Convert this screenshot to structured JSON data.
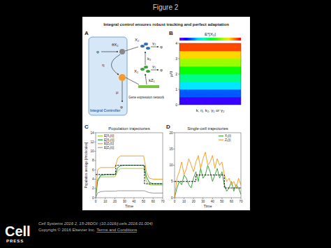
{
  "slide": {
    "title": "Figure 2",
    "journal": "Cell Systems 2016 2, 15-26DOI: (10.1016/j.cels.2016.01.004)",
    "copyright": "Copyright © 2016 Elsevier Inc.",
    "terms": "Terms and Conditions",
    "logo_top": "Cell",
    "logo_bottom": "PRESS"
  },
  "figure": {
    "title": "Integral control ensures robust tracking and perfect adaptation"
  },
  "diagram": {
    "panel": "A",
    "controller": "Integral Controller",
    "network": "Gene expression network",
    "theta_x2": "θX₂",
    "phi_in": "φ",
    "eta": "η",
    "mu": "μ",
    "phi_out": "φ",
    "x2": "X₂",
    "gamma2": "γ₂",
    "phi_x2": "φ",
    "x1": "X₁",
    "gamma1": "γ₁",
    "phi_x1": "φ",
    "k2": "k₂",
    "kz1": "kZ₁"
  },
  "chart_data": [
    {
      "type": "heatmap",
      "panel": "B",
      "x_label": "k, η, k₂, γ₁ or γ₂",
      "y_label": "μ/θ",
      "ylim": [
        0,
        4
      ],
      "yticks": [
        0,
        1,
        2,
        3,
        4
      ],
      "tick_labels": "y",
      "cells": [
        [
          0.25,
          0.25,
          0.25,
          0.25
        ],
        [
          0.75,
          0.75,
          0.75,
          0.75
        ],
        [
          1.25,
          1.25,
          1.25,
          1.25
        ],
        [
          1.75,
          1.75,
          1.75,
          1.75
        ],
        [
          2.25,
          2.25,
          2.25,
          2.25
        ],
        [
          2.75,
          2.75,
          2.75,
          2.75
        ],
        [
          3.25,
          3.25,
          3.25,
          3.25
        ],
        [
          3.75,
          3.75,
          3.75,
          3.75
        ]
      ],
      "colorbar_label": "E*[X₂]",
      "colorbar_range": [
        0,
        4
      ]
    },
    {
      "type": "line",
      "panel": "C",
      "title": "Population trajectories",
      "x_label": "Time",
      "y_label": "Population average [#molecules]",
      "x": [
        0,
        2,
        5,
        10,
        20,
        21,
        23,
        26,
        30,
        40,
        50,
        51,
        53,
        56,
        60,
        70
      ],
      "xlim": [
        0,
        70
      ],
      "xticks": [
        0,
        10,
        20,
        30,
        40,
        50,
        60,
        70
      ],
      "ylim": [
        0,
        14
      ],
      "yticks": [
        0,
        2,
        4,
        6,
        8,
        10,
        12,
        14
      ],
      "grid": false,
      "legend": "upper left",
      "series": [
        {
          "name": "E[X₁(t)]",
          "color": "#9acd32",
          "values": [
            0,
            4,
            4.5,
            4.5,
            4.5,
            4.8,
            5.8,
            6.3,
            6.3,
            6.3,
            6.3,
            5.8,
            3.5,
            2.8,
            2.7,
            2.7
          ]
        },
        {
          "name": "E[X₂(t)]",
          "color": "#1a9850",
          "values": [
            0,
            3.5,
            4.8,
            5,
            5,
            5.3,
            6.5,
            6.9,
            7,
            7,
            7,
            6.5,
            4.5,
            3.3,
            3,
            3
          ]
        },
        {
          "name": "E[Z₁(t)]",
          "color": "#f4a12c",
          "values": [
            0,
            6,
            6.5,
            6.5,
            6.5,
            7,
            8.5,
            9,
            9,
            9,
            9,
            8,
            5.5,
            4.2,
            4,
            4
          ]
        },
        {
          "name": "E[Z₂(t)]",
          "color": "#999999",
          "values": [
            0,
            1,
            1.3,
            1.4,
            1.4,
            1.4,
            1.5,
            1.5,
            1.5,
            1.5,
            1.5,
            1.5,
            1.3,
            1.1,
            1,
            1
          ]
        },
        {
          "color": "#000000",
          "type": "step",
          "line_style": "dashed",
          "values": [
            5,
            5,
            5,
            5,
            5,
            7,
            7,
            7,
            7,
            7,
            7,
            3,
            3,
            3,
            3,
            3
          ]
        }
      ]
    },
    {
      "type": "line",
      "panel": "D",
      "title": "Single-cell trajectories",
      "x_label": "Time",
      "x": [
        0,
        2.5,
        5,
        7.5,
        10,
        12.5,
        15,
        17.5,
        20,
        22.5,
        25,
        27.5,
        30,
        32.5,
        35,
        37.5,
        40,
        42.5,
        45,
        47.5,
        50,
        52.5,
        55,
        57.5,
        60,
        62.5,
        65,
        67.5,
        70
      ],
      "xlim": [
        0,
        70
      ],
      "xticks": [
        0,
        10,
        20,
        30,
        40,
        50,
        60,
        70
      ],
      "ylim": [
        0,
        20
      ],
      "yticks": [
        0,
        5,
        10,
        15,
        20
      ],
      "grid": false,
      "legend": "upper right",
      "series": [
        {
          "name": "X₂(t)",
          "color": "#3aa33a",
          "values": [
            0,
            3,
            5,
            4,
            7,
            6,
            4,
            3,
            6,
            8,
            5,
            9,
            6,
            7,
            10,
            8,
            5,
            7,
            9,
            6,
            8,
            4,
            2,
            3,
            5,
            2,
            4,
            3,
            1
          ]
        },
        {
          "name": "Z₁(t)",
          "color": "#f4a12c",
          "values": [
            0,
            6,
            8,
            11,
            7,
            9,
            12,
            10,
            8,
            11,
            13,
            9,
            12,
            14,
            10,
            11,
            13,
            9,
            12,
            10,
            11,
            7,
            5,
            6,
            4,
            5,
            3,
            6,
            4
          ]
        },
        {
          "color": "#000000",
          "type": "step",
          "line_style": "dashed",
          "values": [
            5,
            5,
            5,
            5,
            5,
            5,
            5,
            5,
            5,
            7,
            7,
            7,
            7,
            7,
            7,
            7,
            7,
            7,
            7,
            7,
            7,
            3,
            3,
            3,
            3,
            3,
            3,
            3,
            3
          ]
        }
      ]
    }
  ]
}
